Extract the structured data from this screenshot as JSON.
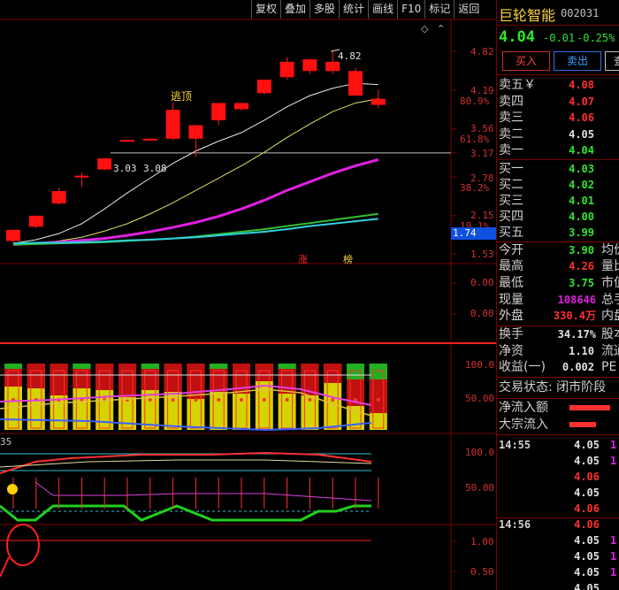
{
  "toolbar": [
    "复权",
    "叠加",
    "多股",
    "统计",
    "画线",
    "F10",
    "标记",
    "返回"
  ],
  "price_axis": [
    "4.82",
    "4.19",
    "3.56",
    "3.17",
    "2.78",
    "2.15",
    "1.53"
  ],
  "pct_axis": [
    "80.9%",
    "61.8%",
    "38.2%",
    "19.1%"
  ],
  "price_axis_highlight": "1.74",
  "high_label": "4.82",
  "range_labels": [
    "3.03",
    "3.08"
  ],
  "signal_label": "逃顶",
  "event_labels": [
    "涨",
    "榜"
  ],
  "ind1_axis": [
    "0.00",
    "0.00"
  ],
  "ind2_axis": [
    "100.0",
    "50.00"
  ],
  "ind3_axis": [
    "100.0",
    "50.00"
  ],
  "ind3_prefix": "35",
  "ind4_axis": [
    "1.00",
    "0.50"
  ],
  "chart_data": {
    "type": "candlestick",
    "candles": [
      {
        "o": 1.74,
        "c": 1.92,
        "h": 1.92,
        "l": 1.7
      },
      {
        "o": 1.97,
        "c": 2.15,
        "h": 2.15,
        "l": 1.95
      },
      {
        "o": 2.35,
        "c": 2.55,
        "h": 2.6,
        "l": 2.33
      },
      {
        "o": 2.8,
        "c": 2.8,
        "h": 2.85,
        "l": 2.62
      },
      {
        "o": 2.9,
        "c": 3.08,
        "h": 3.08,
        "l": 2.89
      },
      {
        "o": 3.38,
        "c": 3.38,
        "h": 3.38,
        "l": 3.38
      },
      {
        "o": 3.4,
        "c": 3.4,
        "h": 3.4,
        "l": 3.4
      },
      {
        "o": 3.4,
        "c": 3.87,
        "h": 3.98,
        "l": 3.38
      },
      {
        "o": 3.4,
        "c": 3.62,
        "h": 3.62,
        "l": 3.1
      },
      {
        "o": 3.7,
        "c": 3.98,
        "h": 3.98,
        "l": 3.62
      },
      {
        "o": 3.88,
        "c": 3.98,
        "h": 3.98,
        "l": 3.86
      },
      {
        "o": 4.14,
        "c": 4.36,
        "h": 4.36,
        "l": 4.12
      },
      {
        "o": 4.4,
        "c": 4.65,
        "h": 4.72,
        "l": 4.36
      },
      {
        "o": 4.5,
        "c": 4.69,
        "h": 4.69,
        "l": 4.45
      },
      {
        "o": 4.5,
        "c": 4.65,
        "h": 4.82,
        "l": 4.45
      },
      {
        "o": 4.1,
        "c": 4.5,
        "h": 4.55,
        "l": 4.1
      },
      {
        "o": 3.95,
        "c": 4.05,
        "h": 4.2,
        "l": 3.9
      }
    ],
    "ma_series": [
      {
        "color": "#e8e8e8",
        "values": [
          1.7,
          1.76,
          1.86,
          2.02,
          2.26,
          2.52,
          2.76,
          3.0,
          3.2,
          3.36,
          3.5,
          3.7,
          3.92,
          4.1,
          4.22,
          4.3,
          4.28
        ]
      },
      {
        "color": "#e0e060",
        "values": [
          1.68,
          1.7,
          1.74,
          1.8,
          1.9,
          2.02,
          2.18,
          2.36,
          2.56,
          2.76,
          2.96,
          3.18,
          3.42,
          3.64,
          3.84,
          3.98,
          4.05
        ]
      },
      {
        "color": "#e020e0",
        "values": [
          1.68,
          1.7,
          1.72,
          1.75,
          1.78,
          1.83,
          1.89,
          1.96,
          2.04,
          2.14,
          2.26,
          2.4,
          2.56,
          2.7,
          2.84,
          2.96,
          3.06
        ]
      },
      {
        "color": "#30c030",
        "values": [
          1.68,
          1.69,
          1.7,
          1.71,
          1.72,
          1.74,
          1.76,
          1.78,
          1.81,
          1.85,
          1.89,
          1.93,
          1.98,
          2.03,
          2.08,
          2.13,
          2.18
        ]
      },
      {
        "color": "#30d0e0",
        "values": [
          1.7,
          1.71,
          1.71,
          1.72,
          1.73,
          1.75,
          1.76,
          1.78,
          1.8,
          1.83,
          1.86,
          1.89,
          1.93,
          1.98,
          2.02,
          2.06,
          2.1
        ]
      }
    ],
    "ylim": [
      1.53,
      4.82
    ],
    "hline": 3.17
  },
  "quote": {
    "name": "巨轮智能",
    "code": "002031",
    "price": "4.04",
    "change": "-0.01",
    "change_pct": "-0.25%",
    "buy_btn": "买入",
    "sell_btn": "卖出",
    "third_btn": "查",
    "asks": [
      {
        "label": "卖五￥",
        "price": "4.08"
      },
      {
        "label": "卖四",
        "price": "4.07"
      },
      {
        "label": "卖三",
        "price": "4.06"
      },
      {
        "label": "卖二",
        "price": "4.05"
      },
      {
        "label": "卖一",
        "price": "4.04"
      }
    ],
    "bids": [
      {
        "label": "买一",
        "price": "4.03"
      },
      {
        "label": "买二",
        "price": "4.02"
      },
      {
        "label": "买三",
        "price": "4.01"
      },
      {
        "label": "买四",
        "price": "4.00"
      },
      {
        "label": "买五",
        "price": "3.99"
      }
    ],
    "stats": [
      {
        "label": "今开",
        "value": "3.90",
        "extra": "均价"
      },
      {
        "label": "最高",
        "value": "4.26",
        "extra": "量比"
      },
      {
        "label": "最低",
        "value": "3.75",
        "extra": "市值"
      },
      {
        "label": "现量",
        "value": "108646",
        "extra": "总手"
      },
      {
        "label": "外盘",
        "value": "330.4万",
        "extra": "内盘"
      }
    ],
    "stats2": [
      {
        "label": "换手",
        "value": "34.17%",
        "extra": "股本"
      },
      {
        "label": "净资",
        "value": "1.10",
        "extra": "流通"
      },
      {
        "label": "收益(一)",
        "value": "0.002",
        "extra": "PE"
      }
    ],
    "trade_status": "交易状态: 闭市阶段",
    "net_inflow": "净流入额",
    "block_inflow": "大宗流入",
    "ticks_a_time": "14:55",
    "ticks_a": [
      {
        "p": "4.05",
        "c": "#e0e0e0",
        "v": "1"
      },
      {
        "p": "4.05",
        "c": "#e0e0e0",
        "v": "1"
      },
      {
        "p": "4.06",
        "c": "#ff3030",
        "v": ""
      },
      {
        "p": "4.05",
        "c": "#e0e0e0",
        "v": ""
      },
      {
        "p": "4.06",
        "c": "#ff3030",
        "v": ""
      }
    ],
    "ticks_b_time": "14:56",
    "ticks_b": [
      {
        "p": "4.06",
        "c": "#ff3030",
        "v": ""
      },
      {
        "p": "4.05",
        "c": "#e0e0e0",
        "v": "1"
      },
      {
        "p": "4.05",
        "c": "#e0e0e0",
        "v": "1"
      },
      {
        "p": "4.05",
        "c": "#e0e0e0",
        "v": "1"
      },
      {
        "p": "4.05",
        "c": "#e0e0e0",
        "v": ""
      }
    ]
  }
}
